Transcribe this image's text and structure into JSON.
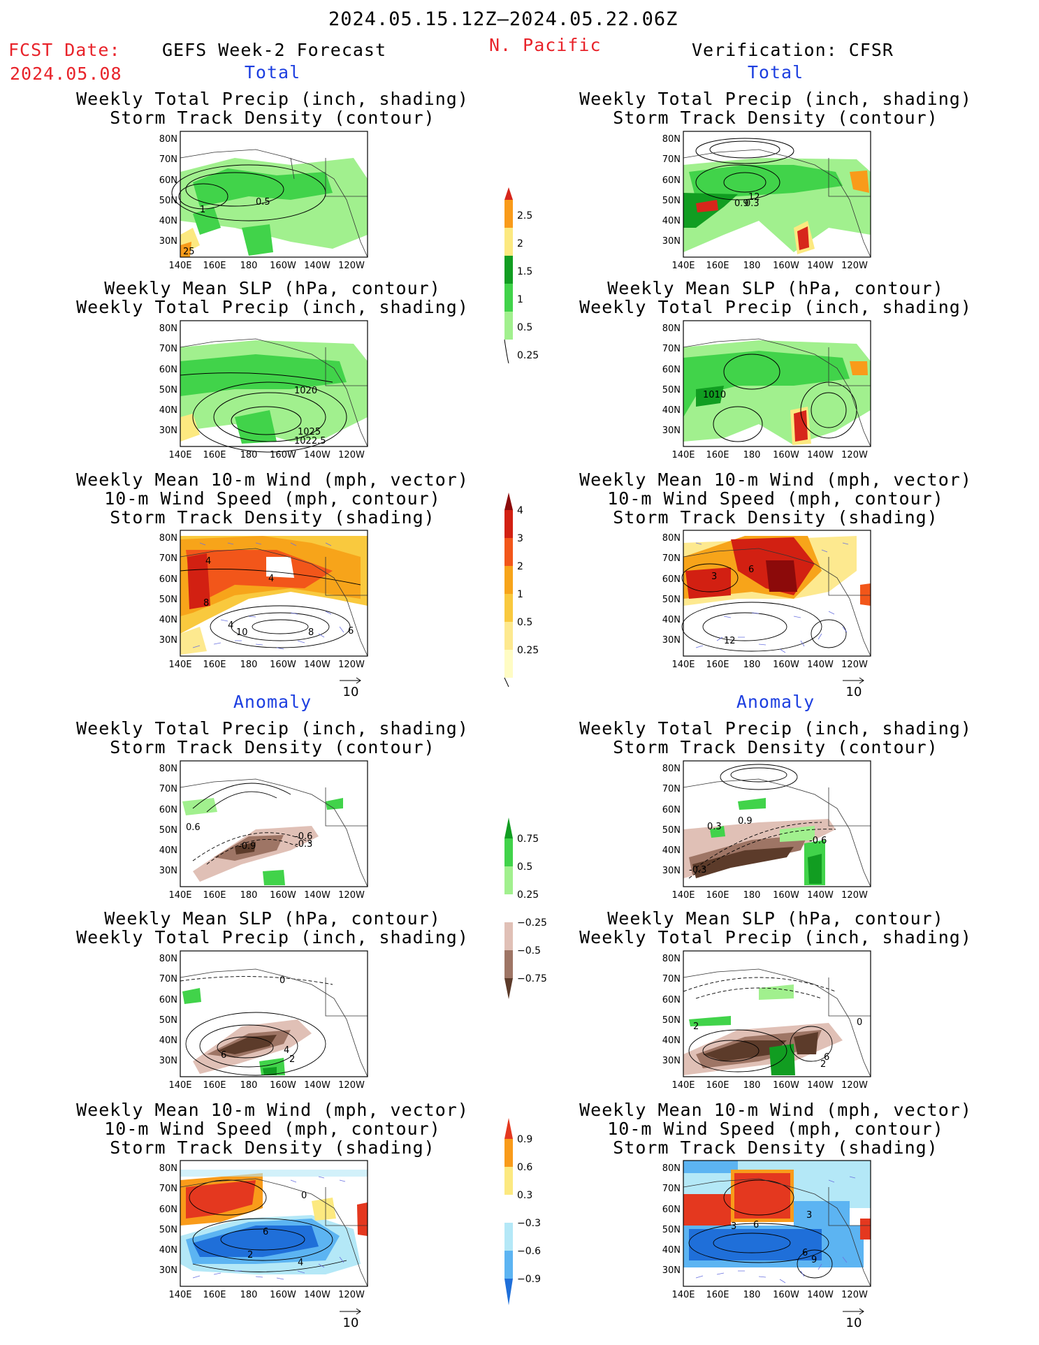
{
  "header": {
    "period": "2024.05.15.12Z—2024.05.22.06Z",
    "fcst_label": "FCST Date:",
    "fcst_date": "2024.05.08",
    "model": "GEFS Week-2 Forecast",
    "region": "N. Pacific",
    "verification": "Verification: CFSR"
  },
  "sections": {
    "total": "Total",
    "anomaly": "Anomaly"
  },
  "panel_titles": {
    "precip_storm": [
      "Weekly Total Precip (inch, shading)",
      "Storm Track Density (contour)"
    ],
    "slp_precip": [
      "Weekly Mean SLP (hPa, contour)",
      "Weekly Total Precip (inch, shading)"
    ],
    "wind_storm": [
      "Weekly Mean 10-m Wind (mph, vector)",
      "10-m Wind Speed (mph, contour)",
      "Storm Track Density (shading)"
    ]
  },
  "axes": {
    "lat_labels": [
      "80N",
      "70N",
      "60N",
      "50N",
      "40N",
      "30N"
    ],
    "lon_labels": [
      "140E",
      "160E",
      "180",
      "160W",
      "140W",
      "120W"
    ]
  },
  "vector_reference": "10",
  "colorbars": {
    "precip_total": {
      "labels": [
        "2.5",
        "2",
        "1.5",
        "1",
        "0.5",
        "0.25"
      ],
      "colors": [
        "#d7261b",
        "#f99b1a",
        "#fce980",
        "#119d21",
        "#41d34a",
        "#a1f08e"
      ]
    },
    "storm_total": {
      "labels": [
        "4",
        "3",
        "2",
        "1",
        "0.5",
        "0.25"
      ],
      "colors": [
        "#8c0a0a",
        "#d22012",
        "#f2561a",
        "#f7a41a",
        "#f9c93e",
        "#fde98f",
        "#fffcc4"
      ]
    },
    "precip_anom": {
      "labels": [
        "0.75",
        "0.5",
        "0.25",
        "−0.25",
        "−0.5",
        "−0.75"
      ],
      "colors": [
        "#119d21",
        "#41d34a",
        "#a1f08e",
        "#ffffff",
        "#e0c0b6",
        "#9e7565",
        "#5c3b2a"
      ]
    },
    "storm_anom": {
      "labels": [
        "0.9",
        "0.6",
        "0.3",
        "−0.3",
        "−0.6",
        "−0.9"
      ],
      "colors": [
        "#e4381f",
        "#f99b1a",
        "#fce980",
        "#ffffff",
        "#b4e8f7",
        "#5cb4f2",
        "#1f6fd9"
      ]
    }
  },
  "contour_labels": {
    "L1": [
      "1",
      "0.5",
      "25"
    ],
    "R1": [
      "12",
      "0.9",
      "0.3"
    ],
    "L2": [
      "1020",
      "1025",
      "1022.5"
    ],
    "R2": [
      "1010"
    ],
    "L3": [
      "4",
      "4",
      "8",
      "4",
      "10",
      "8",
      "6"
    ],
    "R3": [
      "3",
      "6",
      "12"
    ],
    "L4": [
      "0.6",
      "-0.9",
      "-0.6",
      "-0.3"
    ],
    "R4": [
      "0.3",
      "0.9",
      "-0.6",
      "-0.3"
    ],
    "L5": [
      "0",
      "6",
      "4",
      "2"
    ],
    "R5": [
      "2",
      "6",
      "2",
      "0"
    ],
    "L6": [
      "6",
      "2",
      "4",
      "0"
    ],
    "R6": [
      "6",
      "3",
      "3",
      "6",
      "9"
    ]
  }
}
